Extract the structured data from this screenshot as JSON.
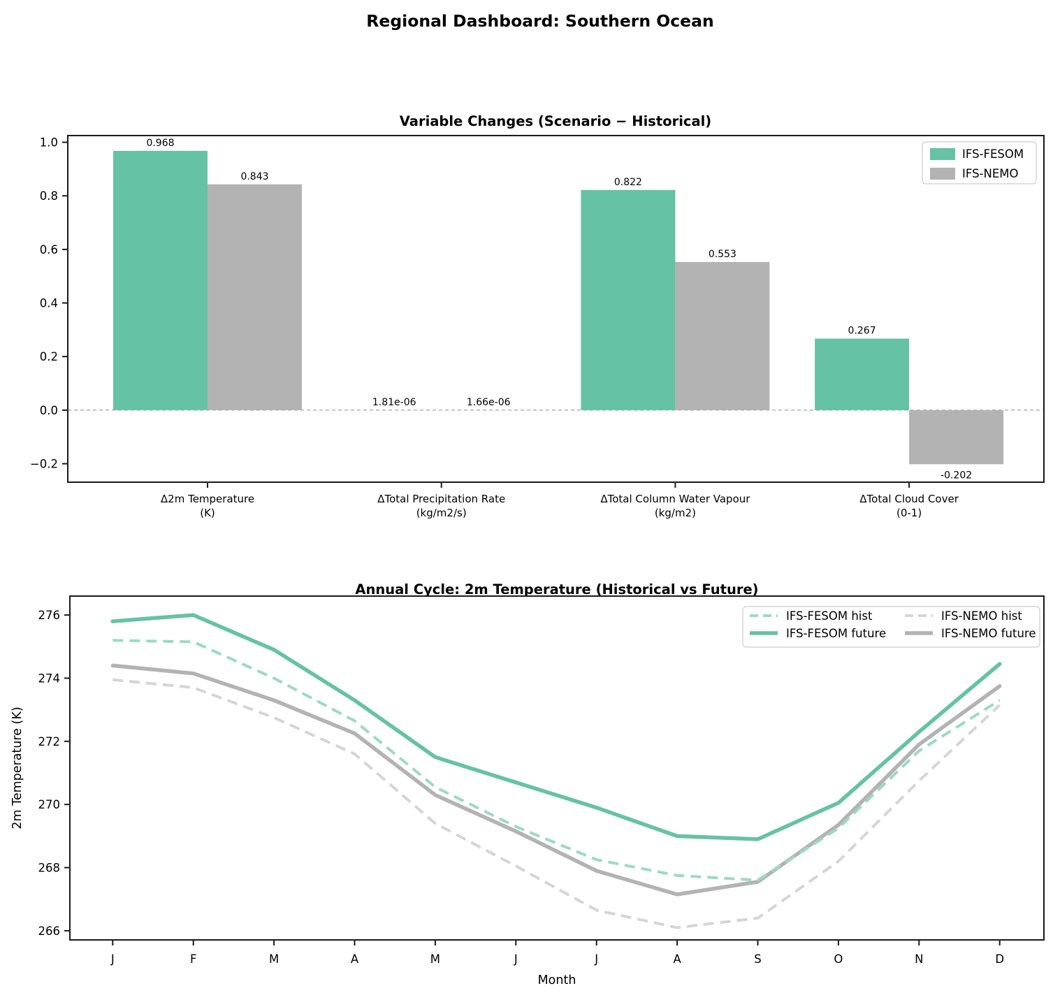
{
  "page": {
    "title": "Regional Dashboard: Southern Ocean"
  },
  "colors": {
    "fesom": "#66c2a5",
    "nemo": "#b3b3b3",
    "fesom_hist": "#9bdac4",
    "nemo_hist": "#d5d5d5",
    "zero_line": "#8c8c8c",
    "spine": "#1a1a1a",
    "legend_border": "#cccccc"
  },
  "chart_data": [
    {
      "id": "bar-chart",
      "type": "bar",
      "title": "Variable Changes (Scenario − Historical)",
      "categories": [
        {
          "line1": "Δ2m Temperature",
          "line2": "(K)"
        },
        {
          "line1": "ΔTotal Precipitation Rate",
          "line2": "(kg/m2/s)"
        },
        {
          "line1": "ΔTotal Column Water Vapour",
          "line2": "(kg/m2)"
        },
        {
          "line1": "ΔTotal Cloud Cover",
          "line2": "(0-1)"
        }
      ],
      "series": [
        {
          "name": "IFS-FESOM",
          "color_key": "fesom",
          "values": [
            0.968,
            1.81e-06,
            0.822,
            0.267
          ],
          "labels": [
            "0.968",
            "1.81e-06",
            "0.822",
            "0.267"
          ]
        },
        {
          "name": "IFS-NEMO",
          "color_key": "nemo",
          "values": [
            0.843,
            1.66e-06,
            0.553,
            -0.202
          ],
          "labels": [
            "0.843",
            "1.66e-06",
            "0.553",
            "-0.202"
          ]
        }
      ],
      "ylim": [
        -0.269,
        1.025
      ],
      "yticks": [
        {
          "label": "1.0",
          "v": 1.0
        },
        {
          "label": "0.8",
          "v": 0.8
        },
        {
          "label": "0.6",
          "v": 0.6
        },
        {
          "label": "0.4",
          "v": 0.4
        },
        {
          "label": "0.2",
          "v": 0.2
        },
        {
          "label": "0.0",
          "v": 0.0
        },
        {
          "label": "−0.2",
          "v": -0.2
        }
      ],
      "zero_line": true,
      "legend_position": "upper right",
      "grid": false
    },
    {
      "id": "line-chart",
      "type": "line",
      "title": "Annual Cycle: 2m Temperature (Historical vs Future)",
      "xlabel": "Month",
      "ylabel": "2m Temperature (K)",
      "x_categories": [
        "J",
        "F",
        "M",
        "A",
        "M",
        "J",
        "J",
        "A",
        "S",
        "O",
        "N",
        "D"
      ],
      "yticks": [
        {
          "label": "276",
          "v": 276
        },
        {
          "label": "274",
          "v": 274
        },
        {
          "label": "272",
          "v": 272
        },
        {
          "label": "270",
          "v": 270
        },
        {
          "label": "268",
          "v": 268
        },
        {
          "label": "266",
          "v": 266
        }
      ],
      "ylim": [
        265.71,
        276.6
      ],
      "series": [
        {
          "name": "IFS-FESOM hist",
          "style": "dashed",
          "color_key": "fesom_hist",
          "values": [
            275.2,
            275.15,
            274.0,
            272.65,
            270.55,
            269.3,
            268.25,
            267.75,
            267.6,
            269.25,
            271.7,
            273.3
          ]
        },
        {
          "name": "IFS-FESOM future",
          "style": "solid",
          "color_key": "fesom",
          "values": [
            275.8,
            276.0,
            274.9,
            273.3,
            271.5,
            270.7,
            269.9,
            269.0,
            268.9,
            270.05,
            272.3,
            274.45
          ]
        },
        {
          "name": "IFS-NEMO hist",
          "style": "dashed",
          "color_key": "nemo_hist",
          "values": [
            273.95,
            273.7,
            272.75,
            271.6,
            269.4,
            268.05,
            266.65,
            266.1,
            266.4,
            268.2,
            270.75,
            273.15
          ]
        },
        {
          "name": "IFS-NEMO future",
          "style": "solid",
          "color_key": "nemo",
          "values": [
            274.4,
            274.15,
            273.3,
            272.25,
            270.3,
            269.15,
            267.9,
            267.15,
            267.55,
            269.35,
            271.9,
            273.75
          ]
        }
      ],
      "legend_columns": [
        [
          "IFS-FESOM hist",
          "IFS-FESOM future"
        ],
        [
          "IFS-NEMO hist",
          "IFS-NEMO future"
        ]
      ],
      "legend_position": "upper right",
      "grid": false
    }
  ]
}
